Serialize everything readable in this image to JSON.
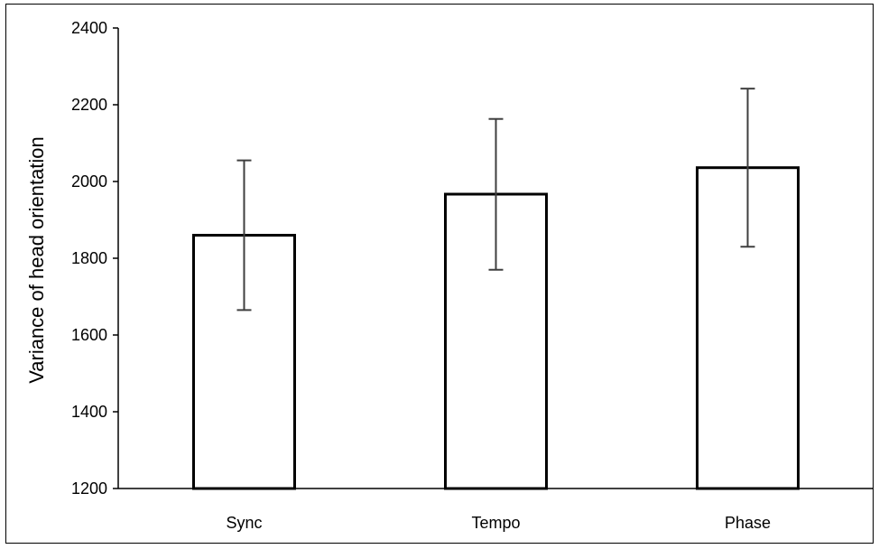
{
  "chart_data": {
    "type": "bar",
    "title": "",
    "xlabel": "",
    "ylabel": "Variance of head orientation",
    "categories": [
      "Sync",
      "Tempo",
      "Phase"
    ],
    "values": [
      1860,
      1967,
      2036
    ],
    "error_low": [
      1665,
      1770,
      1830
    ],
    "error_high": [
      2055,
      2163,
      2242
    ],
    "ylim": [
      1200,
      2400
    ],
    "yticks": [
      "1200",
      "1400",
      "1600",
      "1800",
      "2000",
      "2200",
      "2400"
    ],
    "grid": false,
    "legend": "none",
    "bar_fill": "#ffffff",
    "bar_stroke": "#000000",
    "error_color": "#3f3f3f"
  }
}
